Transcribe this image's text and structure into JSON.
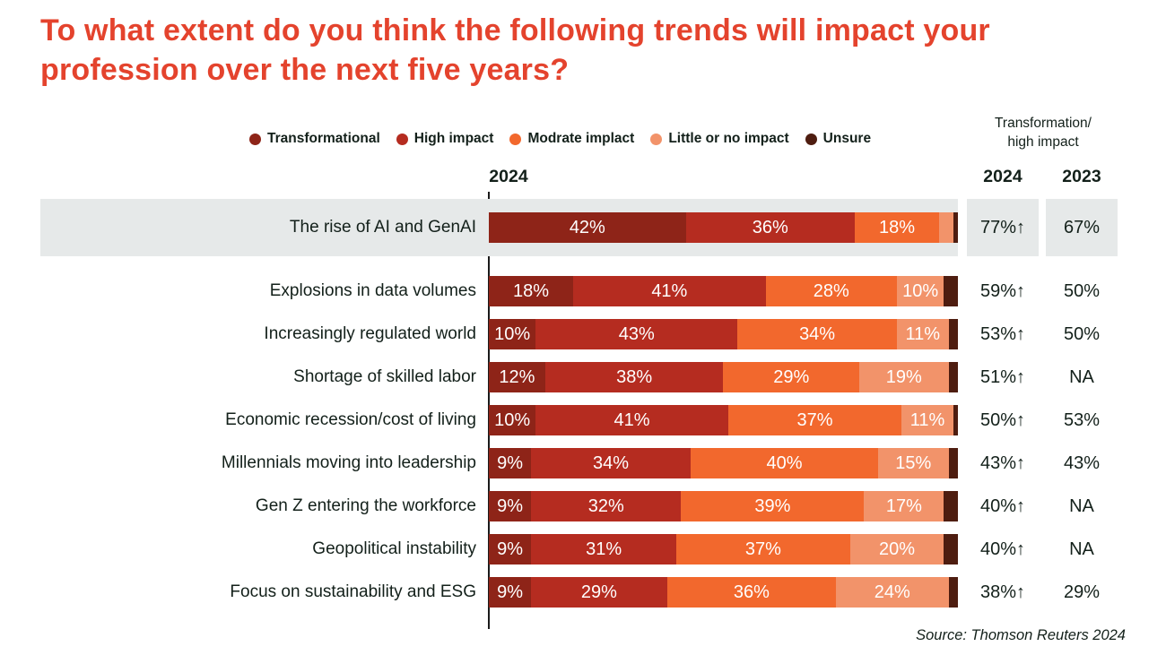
{
  "title": "To what extent do you think the following trends will impact your profession over the next five years?",
  "legend": [
    {
      "key": "transformational",
      "label": "Transformational",
      "color": "#8e2418"
    },
    {
      "key": "high-impact",
      "label": "High impact",
      "color": "#b52c20"
    },
    {
      "key": "moderate-impact",
      "label": "Modrate implact",
      "color": "#f2682d"
    },
    {
      "key": "little-no-impact",
      "label": "Little or no impact",
      "color": "#f2936a"
    },
    {
      "key": "unsure",
      "label": "Unsure",
      "color": "#4e1d10"
    }
  ],
  "headers": {
    "chart_year": "2024",
    "summary_line1": "Transformation/",
    "summary_line2": "high impact",
    "col_2024": "2024",
    "col_2023": "2023"
  },
  "rows": [
    {
      "label": "The rise of AI and GenAI",
      "y2024": "77%↑",
      "y2023": "67%",
      "highlight": true
    },
    {
      "label": "Explosions in data volumes",
      "y2024": "59%↑",
      "y2023": "50%",
      "highlight": false
    },
    {
      "label": "Increasingly regulated world",
      "y2024": "53%↑",
      "y2023": "50%",
      "highlight": false
    },
    {
      "label": "Shortage of skilled labor",
      "y2024": "51%↑",
      "y2023": "NA",
      "highlight": false
    },
    {
      "label": "Economic recession/cost of living",
      "y2024": "50%↑",
      "y2023": "53%",
      "highlight": false
    },
    {
      "label": "Millennials moving into leadership",
      "y2024": "43%↑",
      "y2023": "43%",
      "highlight": false
    },
    {
      "label": "Gen Z entering the workforce",
      "y2024": "40%↑",
      "y2023": "NA",
      "highlight": false
    },
    {
      "label": "Geopolitical instability",
      "y2024": "40%↑",
      "y2023": "NA",
      "highlight": false
    },
    {
      "label": "Focus on sustainability and ESG",
      "y2024": "38%↑",
      "y2023": "29%",
      "highlight": false
    }
  ],
  "source": "Source: Thomson Reuters 2024",
  "chart_data": {
    "type": "bar",
    "stacked": true,
    "orientation": "horizontal",
    "title": "To what extent do you think the following trends will impact your profession over the next five years?",
    "xlim": [
      0,
      100
    ],
    "legend_position": "top",
    "categories": [
      "The rise of AI and GenAI",
      "Explosions in data volumes",
      "Increasingly regulated world",
      "Shortage of skilled labor",
      "Economic recession/cost of living",
      "Millennials moving into leadership",
      "Gen Z entering the workforce",
      "Geopolitical instability",
      "Focus on sustainability and ESG"
    ],
    "series": [
      {
        "name": "Transformational",
        "values": [
          42,
          18,
          10,
          12,
          10,
          9,
          9,
          9,
          9
        ]
      },
      {
        "name": "High impact",
        "values": [
          36,
          41,
          43,
          38,
          41,
          34,
          32,
          31,
          29
        ]
      },
      {
        "name": "Modrate implact",
        "values": [
          18,
          28,
          34,
          29,
          37,
          40,
          39,
          37,
          36
        ]
      },
      {
        "name": "Little or no impact",
        "values": [
          3,
          10,
          11,
          19,
          11,
          15,
          17,
          20,
          24
        ]
      },
      {
        "name": "Unsure",
        "values": [
          1,
          3,
          2,
          2,
          1,
          2,
          3,
          3,
          2
        ]
      }
    ],
    "summary_columns": {
      "header": "Transformation/ high impact",
      "2024": [
        "77%↑",
        "59%↑",
        "53%↑",
        "51%↑",
        "50%↑",
        "43%↑",
        "40%↑",
        "40%↑",
        "38%↑"
      ],
      "2023": [
        "67%",
        "50%",
        "50%",
        "NA",
        "53%",
        "43%",
        "NA",
        "NA",
        "29%"
      ]
    }
  }
}
